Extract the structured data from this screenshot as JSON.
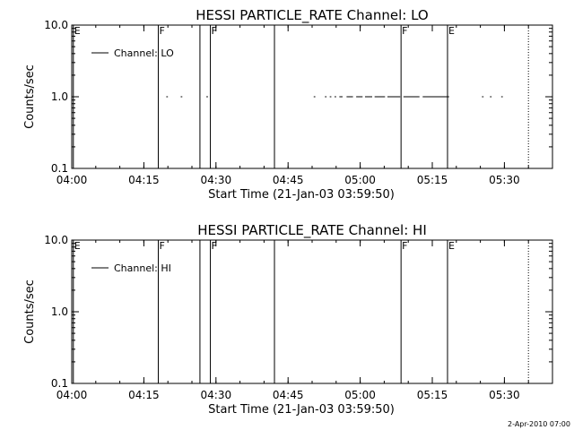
{
  "footer": "2-Apr-2010 07:00",
  "chart_data": [
    {
      "type": "line",
      "title": "HESSI PARTICLE_RATE Channel: LO",
      "xlabel": "Start Time (21-Jan-03 03:59:50)",
      "ylabel": "Counts/sec",
      "y_scale": "log",
      "ylim": [
        0.1,
        10.0
      ],
      "y_ticks": [
        "0.1",
        "1.0",
        "10.0"
      ],
      "xlim": [
        "04:00",
        "05:40"
      ],
      "x_ticks": [
        "04:00",
        "04:15",
        "04:30",
        "04:45",
        "05:00",
        "05:15",
        "05:30"
      ],
      "legend": {
        "position": "top-left",
        "entries": [
          "Channel: LO"
        ]
      },
      "series": [
        {
          "name": "Channel: LO",
          "segments": [
            {
              "x": [
                "04:19:40",
                "04:20:00"
              ],
              "y": 1.0
            },
            {
              "x": [
                "04:22:40",
                "04:23:00"
              ],
              "y": 1.0
            },
            {
              "x": [
                "04:28:00",
                "04:28:20"
              ],
              "y": 1.0
            },
            {
              "x": [
                "04:50:20",
                "04:50:40"
              ],
              "y": 1.0
            },
            {
              "x": [
                "04:52:40",
                "04:53:00"
              ],
              "y": 1.0
            },
            {
              "x": [
                "04:53:40",
                "04:54:00"
              ],
              "y": 1.0
            },
            {
              "x": [
                "04:54:40",
                "04:55:00"
              ],
              "y": 1.0
            },
            {
              "x": [
                "04:55:40",
                "04:56:20"
              ],
              "y": 1.0
            },
            {
              "x": [
                "04:57:10",
                "04:58:30"
              ],
              "y": 1.0
            },
            {
              "x": [
                "04:59:10",
                "05:00:30"
              ],
              "y": 1.0
            },
            {
              "x": [
                "05:01:00",
                "05:02:30"
              ],
              "y": 1.0
            },
            {
              "x": [
                "05:03:00",
                "05:05:10"
              ],
              "y": 1.0
            },
            {
              "x": [
                "05:05:40",
                "05:08:20"
              ],
              "y": 1.0
            },
            {
              "x": [
                "05:09:00",
                "05:12:20"
              ],
              "y": 1.0
            },
            {
              "x": [
                "05:13:00",
                "05:18:30"
              ],
              "y": 1.0
            },
            {
              "x": [
                "05:25:20",
                "05:25:40"
              ],
              "y": 1.0
            },
            {
              "x": [
                "05:27:00",
                "05:27:20"
              ],
              "y": 1.0
            },
            {
              "x": [
                "05:29:20",
                "05:29:40"
              ],
              "y": 1.0
            }
          ]
        }
      ],
      "markers": [
        {
          "label": "E",
          "x": "04:00:20",
          "style": "solid"
        },
        {
          "label": "F",
          "x": "04:18:00",
          "style": "solid"
        },
        {
          "label": "",
          "x": "04:26:40",
          "style": "solid"
        },
        {
          "label": "F",
          "x": "04:28:50",
          "style": "solid"
        },
        {
          "label": "",
          "x": "04:42:10",
          "style": "solid"
        },
        {
          "label": "F",
          "x": "05:08:30",
          "style": "solid"
        },
        {
          "label": "E",
          "x": "05:18:10",
          "style": "solid"
        },
        {
          "label": "",
          "x": "05:35:00",
          "style": "dotted"
        }
      ]
    },
    {
      "type": "line",
      "title": "HESSI PARTICLE_RATE Channel: HI",
      "xlabel": "Start Time (21-Jan-03 03:59:50)",
      "ylabel": "Counts/sec",
      "y_scale": "log",
      "ylim": [
        0.1,
        10.0
      ],
      "y_ticks": [
        "0.1",
        "1.0",
        "10.0"
      ],
      "xlim": [
        "04:00",
        "05:40"
      ],
      "x_ticks": [
        "04:00",
        "04:15",
        "04:30",
        "04:45",
        "05:00",
        "05:15",
        "05:30"
      ],
      "legend": {
        "position": "top-left",
        "entries": [
          "Channel: HI"
        ]
      },
      "series": [
        {
          "name": "Channel: HI",
          "segments": []
        }
      ],
      "markers": [
        {
          "label": "E",
          "x": "04:00:20",
          "style": "solid"
        },
        {
          "label": "F",
          "x": "04:18:00",
          "style": "solid"
        },
        {
          "label": "",
          "x": "04:26:40",
          "style": "solid"
        },
        {
          "label": "F",
          "x": "04:28:50",
          "style": "solid"
        },
        {
          "label": "",
          "x": "04:42:10",
          "style": "solid"
        },
        {
          "label": "F",
          "x": "05:08:30",
          "style": "solid"
        },
        {
          "label": "E",
          "x": "05:18:10",
          "style": "solid"
        },
        {
          "label": "",
          "x": "05:35:00",
          "style": "dotted"
        }
      ]
    }
  ]
}
